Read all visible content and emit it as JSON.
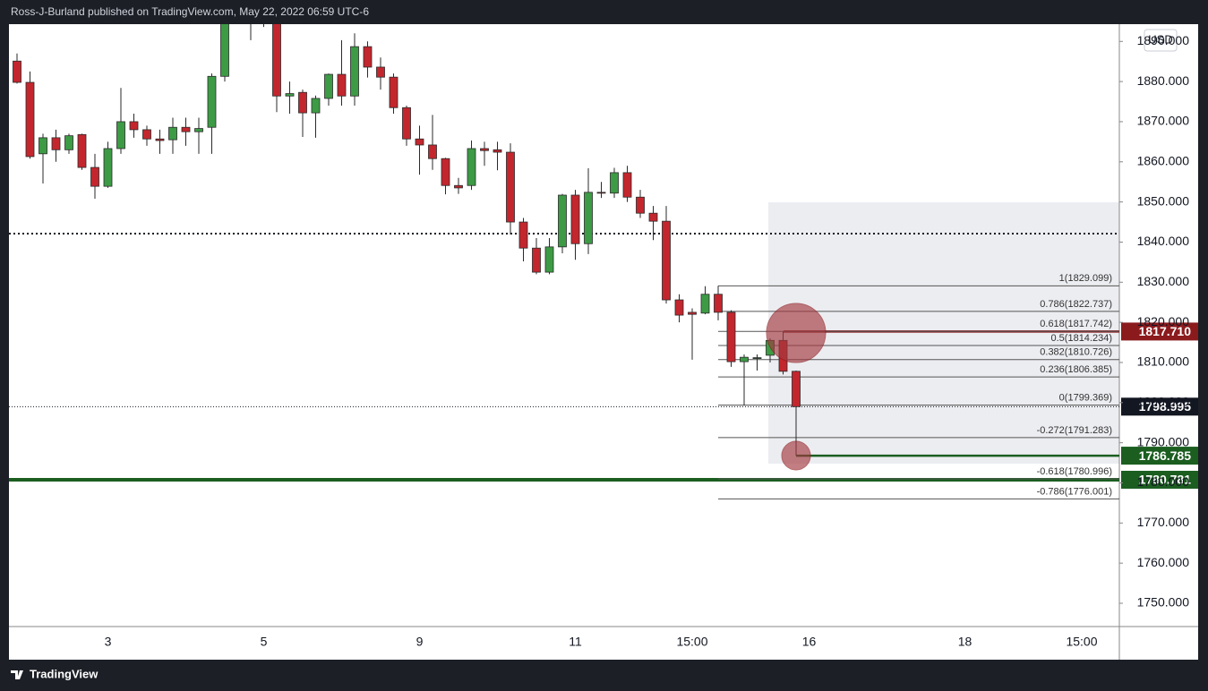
{
  "header": "Ross-J-Burland published on TradingView.com, May 22, 2022 06:59 UTC-6",
  "footer": "TradingView",
  "chart_data": {
    "type": "candlestick",
    "currency": "USD",
    "up_color": "#3d9b45",
    "down_color": "#c4262e",
    "border_color": "#2a2a2a",
    "categories": [
      null,
      null,
      null,
      null,
      null,
      null,
      null,
      "3",
      null,
      null,
      null,
      null,
      null,
      null,
      null,
      null,
      null,
      null,
      null,
      "5",
      null,
      null,
      null,
      null,
      null,
      null,
      null,
      null,
      null,
      null,
      null,
      "9",
      null,
      null,
      null,
      null,
      null,
      null,
      null,
      null,
      null,
      null,
      null,
      "11",
      null,
      null,
      null,
      null,
      null,
      null,
      null,
      null,
      "15:00",
      null,
      null,
      null,
      null,
      null,
      null,
      null,
      null,
      "16",
      null,
      null,
      null,
      null,
      null,
      null,
      null,
      null,
      null,
      null,
      null,
      "18",
      null,
      null,
      null,
      null,
      null,
      null,
      null,
      null,
      "15:00",
      null,
      null
    ],
    "open": [
      1885.1,
      1879.8,
      1862,
      1866,
      1863,
      1866.8,
      1858.6,
      1853.9,
      1863.3,
      1870,
      1868,
      1865.7,
      1865.5,
      1868.6,
      1867.5,
      1868.6,
      1881.3,
      1896,
      1899,
      1897,
      1896,
      1876.4,
      1877.3,
      1872.2,
      1875.8,
      1881.8,
      1876.4,
      1888.7,
      1883.6,
      1881.1,
      1873.5,
      1865.7,
      1864.2,
      1860.8,
      1854.1,
      1854.1,
      1863.3,
      1863,
      1862.4,
      1845,
      1838.5,
      1832.5,
      1838.8,
      1851.7,
      1839.6,
      1852.4,
      1852.2,
      1857.3,
      1851.2,
      1847.2,
      1845.2,
      1825.6,
      1822.5,
      1822.3,
      1827,
      1822.5,
      1810.2,
      1811,
      1811.8,
      1815.5,
      1807.8,
      null,
      null,
      null,
      null,
      null,
      null,
      null,
      null,
      null,
      null,
      null,
      null,
      null,
      null,
      null,
      null,
      null,
      null,
      null,
      null,
      null,
      null,
      null,
      null
    ],
    "high": [
      1887,
      1882.5,
      1867,
      1868,
      1867,
      1867,
      1862,
      1865,
      1878.4,
      1872,
      1869,
      1868,
      1871,
      1871,
      1871,
      1882,
      1898,
      1901,
      1902,
      1900,
      1898,
      1880,
      1878,
      1876.5,
      1882,
      1890.3,
      1892,
      1890,
      1886,
      1882,
      1874,
      1869,
      1871.7,
      1861,
      1856,
      1865.3,
      1865,
      1865,
      1864.6,
      1846,
      1841,
      1841,
      1852,
      1853,
      1858.4,
      1855,
      1858.5,
      1859,
      1853,
      1849,
      1849,
      1827,
      1823.5,
      1829,
      1829.1,
      1823,
      1812,
      1812,
      1816,
      1817.7,
      1808,
      null,
      null,
      null,
      null,
      null,
      null,
      null,
      null,
      null,
      null,
      null,
      null,
      null,
      null,
      null,
      null,
      null,
      null,
      null,
      null,
      null,
      null,
      null,
      null
    ],
    "low": [
      1879.5,
      1860.8,
      1854.6,
      1860,
      1862,
      1858,
      1850.8,
      1853.5,
      1862,
      1866,
      1864,
      1862,
      1862,
      1864,
      1862,
      1862,
      1880,
      1895,
      1890.3,
      1893.6,
      1872.4,
      1872,
      1866.2,
      1866,
      1874,
      1874,
      1874,
      1881,
      1878,
      1872,
      1864,
      1856.8,
      1858,
      1851.9,
      1852,
      1853,
      1859,
      1857.9,
      1841.9,
      1835.2,
      1832,
      1832,
      1837.2,
      1835.6,
      1837,
      1851,
      1851,
      1850,
      1846,
      1840.5,
      1824.7,
      1820,
      1810.7,
      1822,
      1820.5,
      1808.9,
      1799.3,
      1808,
      1810,
      1807,
      1786.8,
      null,
      null,
      null,
      null,
      null,
      null,
      null,
      null,
      null,
      null,
      null,
      null,
      null,
      null,
      null,
      null,
      null,
      null,
      null,
      null,
      null,
      null,
      null,
      null
    ],
    "close": [
      1879.8,
      1861.3,
      1866,
      1863,
      1866.5,
      1858.6,
      1853.9,
      1863.3,
      1870,
      1868,
      1865.7,
      1865.3,
      1868.6,
      1867.5,
      1868.3,
      1881.3,
      1895,
      1899,
      1897,
      1896,
      1876.4,
      1877,
      1872.2,
      1875.8,
      1881.8,
      1876.4,
      1888.7,
      1883.6,
      1881.1,
      1873.5,
      1865.7,
      1864.2,
      1860.8,
      1854.1,
      1853.5,
      1863.3,
      1862.8,
      1862.4,
      1845,
      1838.5,
      1832.5,
      1838.8,
      1851.7,
      1839.6,
      1852.4,
      1852.2,
      1857.3,
      1851.2,
      1847.2,
      1845.2,
      1825.6,
      1821.8,
      1822,
      1827,
      1822.5,
      1810.2,
      1811.3,
      1811.2,
      1815.5,
      1807.8,
      1799,
      null,
      null,
      null,
      null,
      null,
      null,
      null,
      null,
      null,
      null,
      null,
      null,
      null,
      null,
      null,
      null,
      null,
      null,
      null,
      null,
      null,
      null,
      null,
      null
    ],
    "ylim": [
      1744.2,
      1894.3
    ],
    "yticks": [
      {
        "value": 1750,
        "label": "1750.000"
      },
      {
        "value": 1760,
        "label": "1760.000"
      },
      {
        "value": 1770,
        "label": "1770.000"
      },
      {
        "value": 1780,
        "label": "1780.000"
      },
      {
        "value": 1790,
        "label": "1790.000"
      },
      {
        "value": 1800,
        "label": "1800.000"
      },
      {
        "value": 1810,
        "label": "1810.000"
      },
      {
        "value": 1820,
        "label": "1820.000"
      },
      {
        "value": 1830,
        "label": "1830.000"
      },
      {
        "value": 1840,
        "label": "1840.000"
      },
      {
        "value": 1850,
        "label": "1850.000"
      },
      {
        "value": 1860,
        "label": "1860.000"
      },
      {
        "value": 1870,
        "label": "1870.000"
      },
      {
        "value": 1880,
        "label": "1880.000"
      },
      {
        "value": 1890,
        "label": "1890.000"
      }
    ],
    "fib_levels": [
      {
        "value": 1829.099,
        "label": "1(1829.099)"
      },
      {
        "value": 1822.737,
        "label": "0.786(1822.737)"
      },
      {
        "value": 1817.742,
        "label": "0.618(1817.742)"
      },
      {
        "value": 1814.234,
        "label": "0.5(1814.234)"
      },
      {
        "value": 1810.726,
        "label": "0.382(1810.726)"
      },
      {
        "value": 1806.385,
        "label": "0.236(1806.385)"
      },
      {
        "value": 1799.369,
        "label": "0(1799.369)"
      },
      {
        "value": 1791.283,
        "label": "-0.272(1791.283)"
      },
      {
        "value": 1780.996,
        "label": "-0.618(1780.996)"
      },
      {
        "value": 1776.001,
        "label": "-0.786(1776.001)"
      }
    ],
    "price_lines": [
      {
        "value": 1817.71,
        "label": "1817.710",
        "color": "#8b1a1d",
        "style": "solid"
      },
      {
        "value": 1798.995,
        "label": "1798.995",
        "color": "#131722",
        "style": "dotted"
      },
      {
        "value": 1786.785,
        "label": "1786.785",
        "color": "#1b5e20",
        "style": "solid"
      },
      {
        "value": 1780.781,
        "label": "1780.781",
        "color": "#1b5e20",
        "style": "solid"
      },
      {
        "value": 1842.1,
        "color": "#131722",
        "style": "dotted"
      }
    ]
  }
}
